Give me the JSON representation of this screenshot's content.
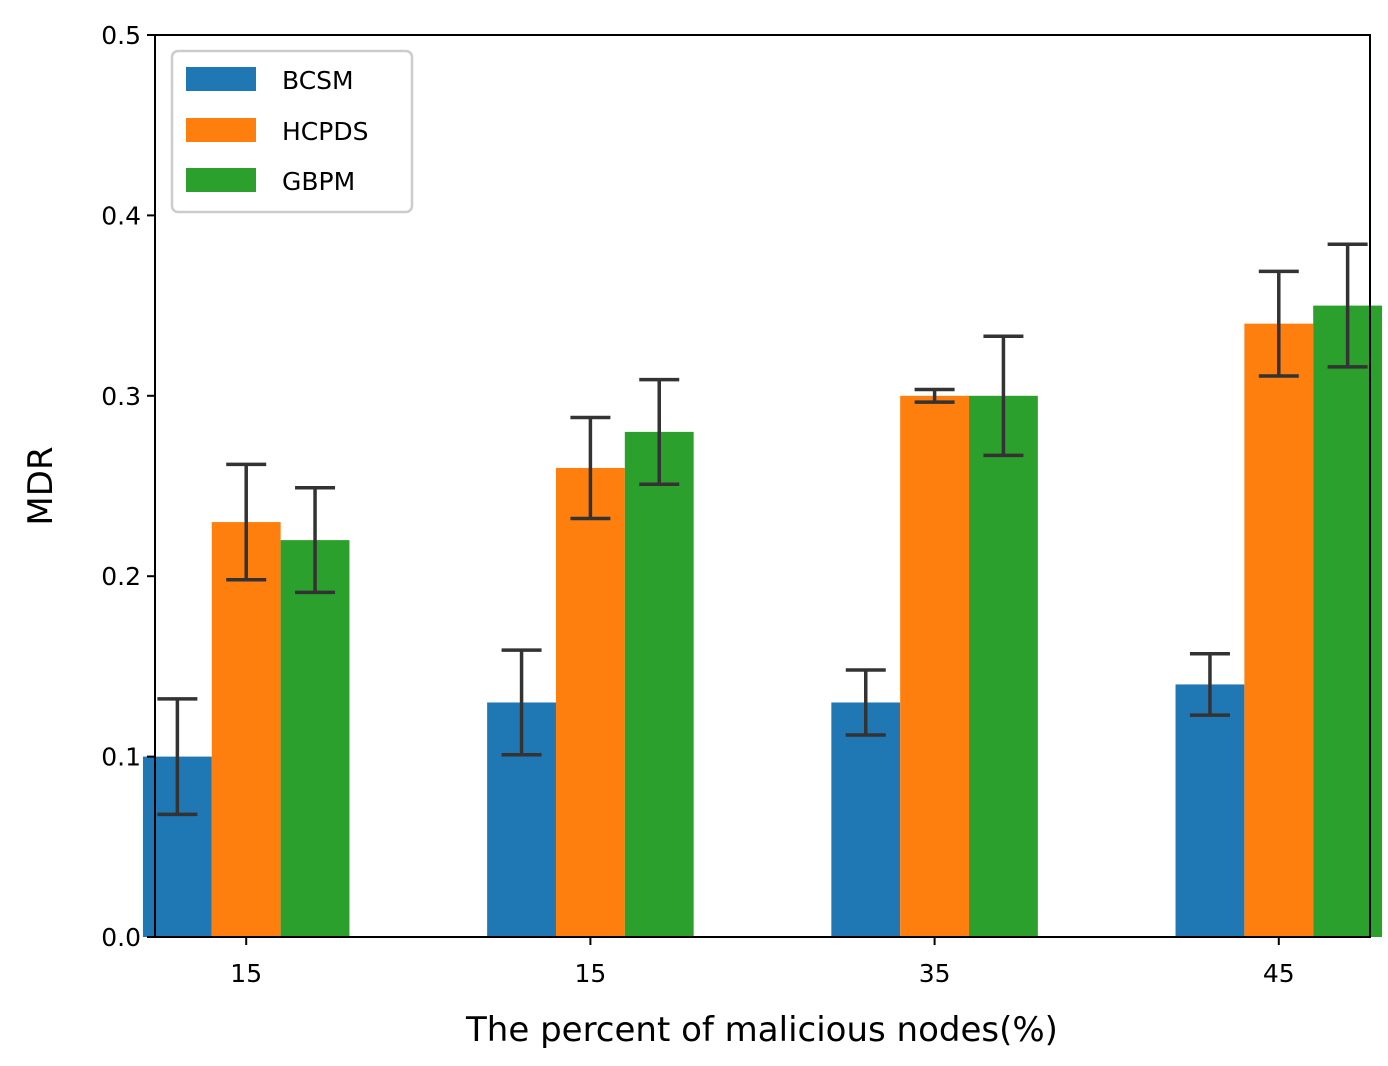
{
  "chart_data": {
    "type": "bar",
    "categories": [
      "15",
      "15",
      "35",
      "45"
    ],
    "series": [
      {
        "name": "BCSM",
        "color": "#1f77b4",
        "values": [
          0.1,
          0.13,
          0.13,
          0.14
        ],
        "errors": [
          0.032,
          0.029,
          0.018,
          0.017
        ]
      },
      {
        "name": "HCPDS",
        "color": "#ff7f0e",
        "values": [
          0.23,
          0.26,
          0.3,
          0.34
        ],
        "errors": [
          0.032,
          0.028,
          0.0035,
          0.029
        ]
      },
      {
        "name": "GBPM",
        "color": "#2ca02c",
        "values": [
          0.22,
          0.28,
          0.3,
          0.35
        ],
        "errors": [
          0.029,
          0.029,
          0.033,
          0.034
        ]
      }
    ],
    "title": "",
    "xlabel": "The percent of malicious nodes(%)",
    "ylabel": "MDR",
    "ylim": [
      0,
      0.5
    ],
    "yticks": [
      "0.0",
      "0.1",
      "0.2",
      "0.3",
      "0.4",
      "0.5"
    ],
    "legend_position": "top-left",
    "grid": false
  }
}
